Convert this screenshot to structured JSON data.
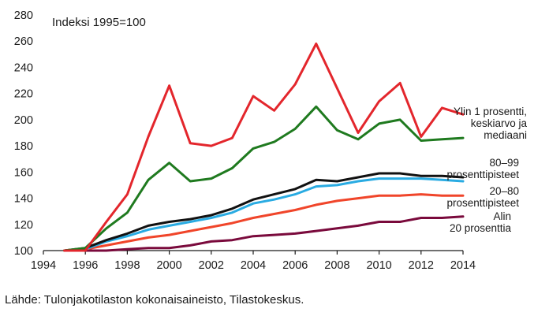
{
  "chart_data": {
    "type": "line",
    "unit_label": "Indeksi 1995=100",
    "xlim": [
      1994,
      2014
    ],
    "ylim": [
      100,
      280
    ],
    "x_ticks": [
      "1994",
      "1996",
      "1998",
      "2000",
      "2002",
      "2004",
      "2006",
      "2008",
      "2010",
      "2012",
      "2014"
    ],
    "y_ticks": [
      "100",
      "120",
      "140",
      "160",
      "180",
      "200",
      "220",
      "240",
      "260",
      "280"
    ],
    "x": [
      1995,
      1996,
      1997,
      1998,
      1999,
      2000,
      2001,
      2002,
      2003,
      2004,
      2005,
      2006,
      2007,
      2008,
      2009,
      2010,
      2011,
      2012,
      2013,
      2014
    ],
    "series": [
      {
        "label_lines": [
          "Ylin 1 prosentti,",
          "keskiarvo ja",
          "mediaani"
        ],
        "color": "#e3262c",
        "values": [
          100,
          100,
          122,
          143,
          187,
          226,
          182,
          180,
          186,
          218,
          207,
          227,
          258,
          224,
          190,
          214,
          228,
          187,
          209,
          204
        ]
      },
      {
        "label_lines": [],
        "color": "#1f7a1f",
        "values": [
          100,
          102,
          117,
          129,
          154,
          167,
          153,
          155,
          163,
          178,
          183,
          193,
          210,
          192,
          185,
          197,
          200,
          184,
          185,
          186
        ]
      },
      {
        "label_lines": [
          "80–99",
          "prosenttipisteet"
        ],
        "color": "#111111",
        "values": [
          100,
          102,
          108,
          113,
          119,
          122,
          124,
          127,
          132,
          139,
          143,
          147,
          154,
          153,
          156,
          159,
          159,
          157,
          157,
          156
        ]
      },
      {
        "label_lines": [],
        "color": "#29abe2",
        "values": [
          100,
          101,
          107,
          111,
          116,
          119,
          122,
          125,
          129,
          136,
          139,
          143,
          149,
          150,
          153,
          155,
          155,
          155,
          154,
          153
        ]
      },
      {
        "label_lines": [
          "20–80",
          "prosenttipisteet"
        ],
        "color": "#f0452a",
        "values": [
          100,
          101,
          104,
          107,
          110,
          112,
          115,
          118,
          121,
          125,
          128,
          131,
          135,
          138,
          140,
          142,
          142,
          143,
          142,
          142
        ]
      },
      {
        "label_lines": [
          "Alin",
          "20 prosenttia"
        ],
        "color": "#7a0a3c",
        "values": [
          100,
          100,
          100,
          101,
          102,
          102,
          104,
          107,
          108,
          111,
          112,
          113,
          115,
          117,
          119,
          122,
          122,
          125,
          125,
          126
        ]
      }
    ]
  },
  "source_note": "Lähde: Tulonjakotilaston kokonaisaineisto, Tilastokeskus."
}
